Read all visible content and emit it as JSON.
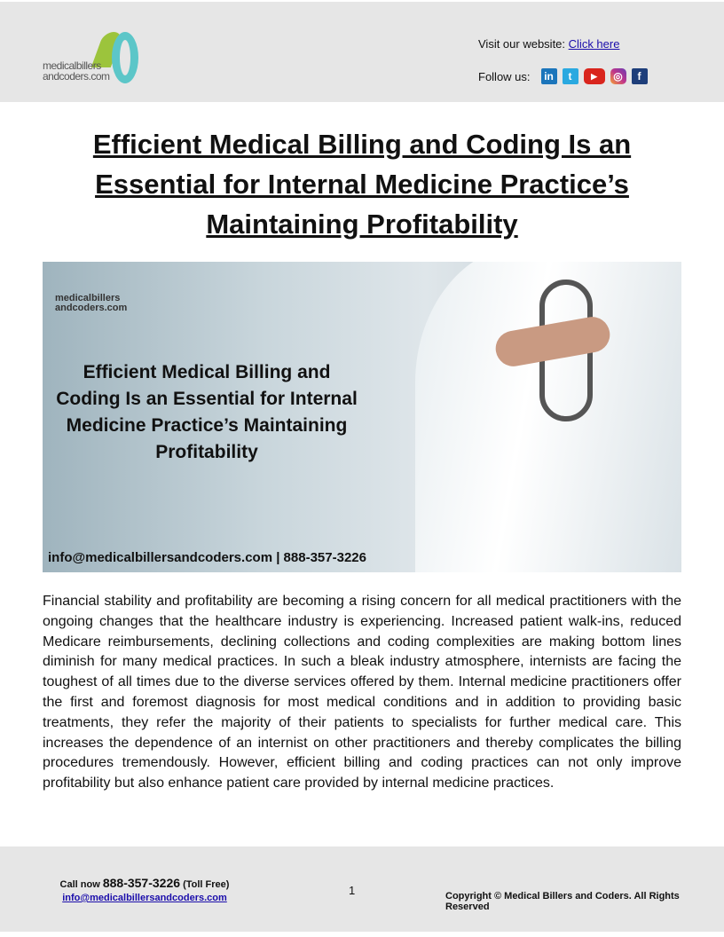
{
  "header": {
    "logo_text": [
      "medicalbillers",
      "andcoders.com"
    ],
    "visit_label": "Visit our website:",
    "visit_link": "Click here",
    "follow_label": "Follow us:",
    "social": [
      {
        "icon": "linkedin-icon",
        "glyph": "in",
        "color": "#1b75bb"
      },
      {
        "icon": "twitter-icon",
        "glyph": "t",
        "color": "#2aa9e0"
      },
      {
        "icon": "youtube-icon",
        "glyph": "▶",
        "color": "#d9251d"
      },
      {
        "icon": "instagram-icon",
        "glyph": "◎",
        "color": "#c1358a"
      },
      {
        "icon": "facebook-icon",
        "glyph": "f",
        "color": "#1e3e7a"
      }
    ]
  },
  "title": "Efficient Medical Billing and Coding Is an Essential for Internal Medicine Practice’s Maintaining Profitability",
  "hero": {
    "logo_text": "medicalbillers andcoders.com",
    "title": "Efficient Medical Billing and Coding Is an Essential for Internal Medicine Practice’s Maintaining Profitability",
    "contact": "info@medicalbillersandcoders.com | 888-357-3226"
  },
  "body": "Financial stability and profitability are becoming a rising concern for all medical practitioners with the ongoing changes that the healthcare industry is experiencing. Increased patient walk-ins, reduced Medicare reimbursements, declining collections and coding complexities are making bottom lines diminish for many medical practices. In such a bleak industry atmosphere, internists are facing the toughest of all times due to the diverse services offered by them. Internal medicine practitioners offer the first and foremost diagnosis for most medical conditions and in addition to providing basic treatments, they refer the majority of their patients to specialists for further medical care. This increases the dependence of an internist on other practitioners and thereby complicates the billing procedures tremendously. However, efficient billing and coding practices can not only improve profitability but also enhance patient care provided by internal medicine practices.",
  "footer": {
    "call_prefix": "Call now",
    "phone": "888-357-3226",
    "toll_free": "(Toll Free)",
    "email": "info@medicalbillersandcoders.com",
    "page_number": "1",
    "copyright": "Copyright © Medical Billers and Coders. All Rights Reserved"
  }
}
